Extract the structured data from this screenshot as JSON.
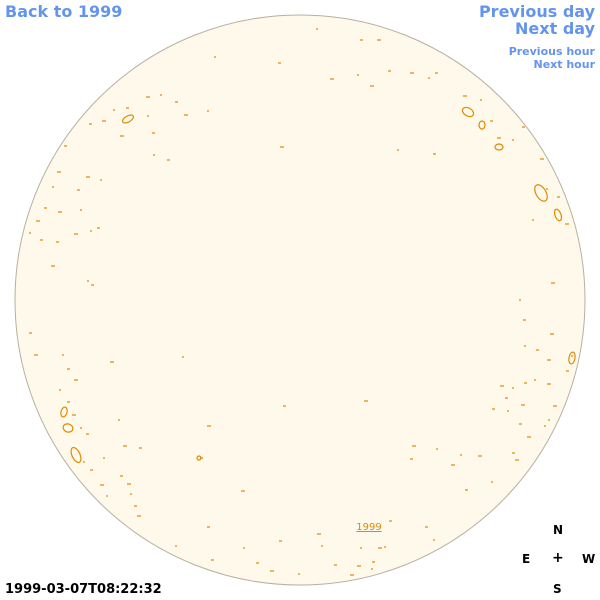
{
  "nav": {
    "back": "Back to 1999",
    "previous_day": "Previous day",
    "next_day": "Next day",
    "previous_hour": "Previous hour",
    "next_hour": "Next hour"
  },
  "timestamp": "1999-03-07T08:22:32",
  "sun_label": "1999",
  "compass": {
    "n": "N",
    "e": "E",
    "center": "+",
    "w": "W",
    "s": "S"
  },
  "colors": {
    "disk_fill": "#fef9ea",
    "disk_stroke": "#b8b0a0",
    "contour": "#e08a00",
    "link": "#6495ed"
  }
}
